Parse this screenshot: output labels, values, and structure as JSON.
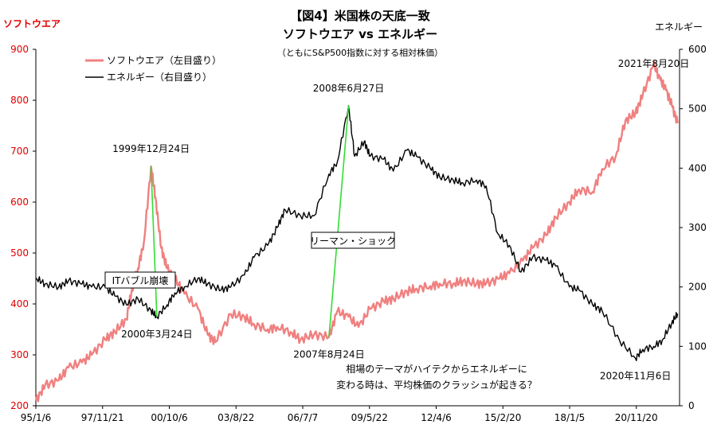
{
  "chart_data": {
    "type": "line",
    "title": "【図4】米国株の天底一致",
    "subtitle": "ソフトウエア vs エネルギー",
    "note": "（ともにS&P500指数に対する相対株価）",
    "left_axis_label": "ソフトウエア",
    "right_axis_label": "エネルギー",
    "ylim_left": [
      200,
      900
    ],
    "ylim_right": [
      0,
      600
    ],
    "yticks_left": [
      200,
      300,
      400,
      500,
      600,
      700,
      800,
      900
    ],
    "yticks_right": [
      0,
      100,
      200,
      300,
      400,
      500,
      600
    ],
    "xlim": [
      "1995-01-06",
      "2022-10-01"
    ],
    "xticks": [
      {
        "date": "1995-01-06",
        "label": "95/1/6"
      },
      {
        "date": "1997-11-21",
        "label": "97/11/21"
      },
      {
        "date": "2000-10-06",
        "label": "00/10/6"
      },
      {
        "date": "2003-08-22",
        "label": "03/8/22"
      },
      {
        "date": "2006-07-07",
        "label": "06/7/7"
      },
      {
        "date": "2009-05-22",
        "label": "09/5/22"
      },
      {
        "date": "2012-04-06",
        "label": "12/4/6"
      },
      {
        "date": "2015-02-20",
        "label": "15/2/20"
      },
      {
        "date": "2018-01-05",
        "label": "18/1/5"
      },
      {
        "date": "2020-11-20",
        "label": "20/11/20"
      }
    ],
    "grid": false,
    "legend_position": "top-left",
    "series": [
      {
        "name": "ソフトウエア（左目盛り）",
        "axis": "left",
        "color": "#f08080",
        "points": [
          [
            "1995-01-06",
            210
          ],
          [
            "1995-06-01",
            240
          ],
          [
            "1996-01-01",
            250
          ],
          [
            "1996-06-01",
            275
          ],
          [
            "1997-01-01",
            285
          ],
          [
            "1997-06-01",
            300
          ],
          [
            "1998-01-01",
            330
          ],
          [
            "1998-06-01",
            345
          ],
          [
            "1998-12-01",
            370
          ],
          [
            "1999-03-01",
            430
          ],
          [
            "1999-06-01",
            470
          ],
          [
            "1999-09-01",
            520
          ],
          [
            "1999-12-24",
            670
          ],
          [
            "2000-03-01",
            610
          ],
          [
            "2000-06-01",
            510
          ],
          [
            "2000-09-01",
            470
          ],
          [
            "2001-01-01",
            450
          ],
          [
            "2001-06-01",
            420
          ],
          [
            "2002-01-01",
            390
          ],
          [
            "2002-06-01",
            340
          ],
          [
            "2002-10-01",
            325
          ],
          [
            "2003-06-01",
            380
          ],
          [
            "2004-01-01",
            375
          ],
          [
            "2004-06-01",
            360
          ],
          [
            "2005-01-01",
            350
          ],
          [
            "2005-06-01",
            355
          ],
          [
            "2006-01-01",
            345
          ],
          [
            "2006-06-01",
            330
          ],
          [
            "2007-01-01",
            340
          ],
          [
            "2007-08-24",
            335
          ],
          [
            "2008-01-01",
            385
          ],
          [
            "2008-06-27",
            375
          ],
          [
            "2008-12-01",
            355
          ],
          [
            "2009-06-01",
            390
          ],
          [
            "2010-01-01",
            405
          ],
          [
            "2010-06-01",
            410
          ],
          [
            "2011-01-01",
            425
          ],
          [
            "2011-06-01",
            430
          ],
          [
            "2012-01-01",
            435
          ],
          [
            "2012-06-01",
            440
          ],
          [
            "2013-01-01",
            440
          ],
          [
            "2013-06-01",
            445
          ],
          [
            "2014-01-01",
            440
          ],
          [
            "2014-06-01",
            440
          ],
          [
            "2015-01-01",
            450
          ],
          [
            "2015-06-01",
            460
          ],
          [
            "2016-01-01",
            485
          ],
          [
            "2016-06-01",
            510
          ],
          [
            "2017-01-01",
            535
          ],
          [
            "2017-06-01",
            570
          ],
          [
            "2018-01-01",
            600
          ],
          [
            "2018-06-01",
            625
          ],
          [
            "2019-01-01",
            620
          ],
          [
            "2019-06-01",
            665
          ],
          [
            "2020-01-01",
            690
          ],
          [
            "2020-06-01",
            760
          ],
          [
            "2020-11-06",
            775
          ],
          [
            "2021-03-01",
            810
          ],
          [
            "2021-08-20",
            870
          ],
          [
            "2021-12-01",
            840
          ],
          [
            "2022-03-01",
            820
          ],
          [
            "2022-06-01",
            790
          ],
          [
            "2022-09-01",
            755
          ]
        ]
      },
      {
        "name": "エネルギー（右目盛り）",
        "axis": "right",
        "color": "#000000",
        "points": [
          [
            "1995-01-06",
            215
          ],
          [
            "1995-06-01",
            205
          ],
          [
            "1996-01-01",
            200
          ],
          [
            "1996-06-01",
            210
          ],
          [
            "1997-01-01",
            205
          ],
          [
            "1997-06-01",
            200
          ],
          [
            "1998-01-01",
            200
          ],
          [
            "1998-06-01",
            185
          ],
          [
            "1998-12-01",
            170
          ],
          [
            "1999-06-01",
            180
          ],
          [
            "1999-12-24",
            160
          ],
          [
            "2000-03-24",
            150
          ],
          [
            "2000-09-01",
            170
          ],
          [
            "2001-01-01",
            190
          ],
          [
            "2001-06-01",
            200
          ],
          [
            "2002-01-01",
            215
          ],
          [
            "2002-06-01",
            205
          ],
          [
            "2003-01-01",
            195
          ],
          [
            "2003-06-01",
            200
          ],
          [
            "2004-01-01",
            220
          ],
          [
            "2004-06-01",
            250
          ],
          [
            "2005-01-01",
            270
          ],
          [
            "2005-06-01",
            300
          ],
          [
            "2005-10-01",
            330
          ],
          [
            "2006-06-01",
            320
          ],
          [
            "2007-01-01",
            320
          ],
          [
            "2007-08-24",
            390
          ],
          [
            "2008-01-01",
            410
          ],
          [
            "2008-06-27",
            505
          ],
          [
            "2008-10-01",
            420
          ],
          [
            "2009-03-01",
            445
          ],
          [
            "2009-06-01",
            420
          ],
          [
            "2010-01-01",
            415
          ],
          [
            "2010-06-01",
            395
          ],
          [
            "2011-01-01",
            430
          ],
          [
            "2011-06-01",
            420
          ],
          [
            "2012-01-01",
            400
          ],
          [
            "2012-06-01",
            385
          ],
          [
            "2013-01-01",
            380
          ],
          [
            "2013-06-01",
            375
          ],
          [
            "2014-01-01",
            380
          ],
          [
            "2014-06-01",
            370
          ],
          [
            "2014-12-01",
            290
          ],
          [
            "2015-06-01",
            270
          ],
          [
            "2015-12-01",
            225
          ],
          [
            "2016-06-01",
            250
          ],
          [
            "2017-01-01",
            245
          ],
          [
            "2017-06-01",
            235
          ],
          [
            "2018-01-01",
            200
          ],
          [
            "2018-06-01",
            195
          ],
          [
            "2019-01-01",
            170
          ],
          [
            "2019-06-01",
            160
          ],
          [
            "2020-03-01",
            110
          ],
          [
            "2020-11-06",
            80
          ],
          [
            "2021-03-01",
            95
          ],
          [
            "2021-08-20",
            100
          ],
          [
            "2022-01-01",
            110
          ],
          [
            "2022-06-01",
            140
          ],
          [
            "2022-09-01",
            155
          ]
        ]
      }
    ],
    "top_markers": [
      {
        "label": "1999年12月24日",
        "date": "1999-12-24",
        "value": 670,
        "axis": "left"
      },
      {
        "label": "2008年6月27日",
        "date": "2008-06-27",
        "value": 505,
        "axis": "right"
      },
      {
        "label": "2021年8月20日",
        "date": "2021-08-20",
        "value": 870,
        "axis": "left"
      }
    ],
    "bottom_markers": [
      {
        "label": "2000年3月24日",
        "date": "2000-03-24",
        "value": 150,
        "axis": "right"
      },
      {
        "label": "2007年8月24日",
        "date": "2007-08-24",
        "value": 335,
        "axis": "left"
      },
      {
        "label": "2020年11月6日",
        "date": "2020-11-06",
        "value": 80,
        "axis": "right"
      }
    ],
    "green_links": [
      {
        "from": {
          "date": "1999-12-24",
          "value": 670,
          "axis": "left"
        },
        "to": {
          "date": "2000-03-24",
          "value": 150,
          "axis": "right"
        }
      },
      {
        "from": {
          "date": "2007-08-24",
          "value": 335,
          "axis": "left"
        },
        "to": {
          "date": "2008-06-27",
          "value": 505,
          "axis": "right"
        }
      }
    ],
    "callouts": [
      {
        "text": "ITバブル崩壊",
        "date": "1999-10-01",
        "value": 400,
        "axis": "left"
      },
      {
        "text": "リーマン・ショック",
        "date": "2007-08-01",
        "value": 510,
        "axis": "left"
      }
    ],
    "footnote_lines": [
      "相場のテーマがハイテクからエネルギーに",
      "変わる時は、平均株価のクラッシュが起きる？"
    ]
  }
}
